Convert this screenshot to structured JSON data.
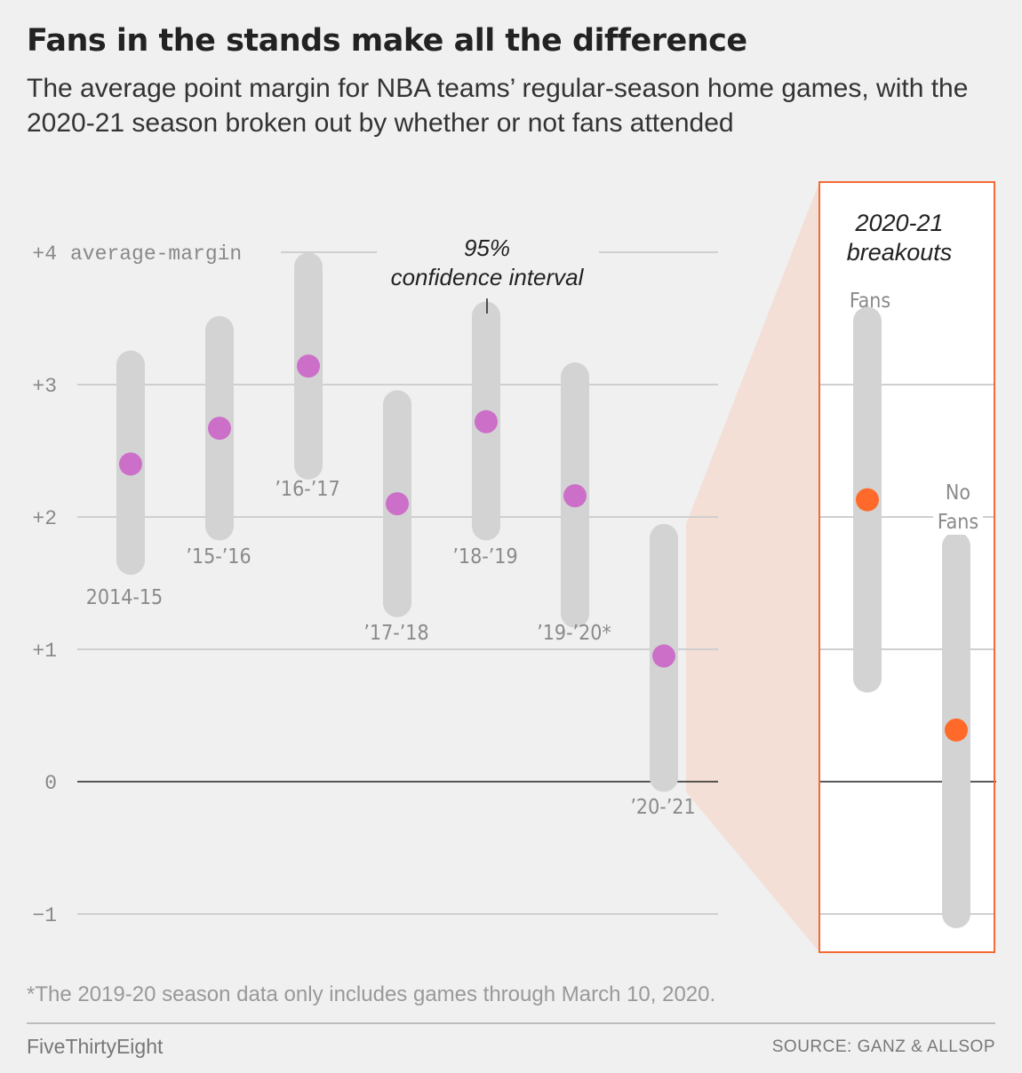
{
  "header": {
    "title": "Fans in the stands make all the difference",
    "subtitle": "The average point margin for NBA teams’ regular-season home games, with the 2020-21 season broken out by whether or not fans attended"
  },
  "footer": {
    "footnote": "*The 2019-20 season data only includes games through March 10, 2020.",
    "brand": "FiveThirtyEight",
    "source": "SOURCE: GANZ & ALLSOP"
  },
  "colors": {
    "background": "#f0f0f0",
    "interval": "#d3d3d3",
    "season_dot": "#cc6fc9",
    "breakout_dot": "#ff6a2a",
    "breakout_border": "#f36a35",
    "zoom_fill": "#f3dfd6"
  },
  "chart_data": [
    {
      "type": "scatter",
      "subtype": "point-with-interval",
      "ylabel": "average-margin",
      "ylim": [
        -1,
        4
      ],
      "yticks": [
        -1,
        0,
        1,
        2,
        3,
        4
      ],
      "ytick_labels": [
        "−1",
        "0",
        "+1",
        "+2",
        "+3",
        "+4"
      ],
      "grid": true,
      "annotation": [
        "95%",
        "confidence interval"
      ],
      "categories": [
        "2014-15",
        "’15-’16",
        "’16-’17",
        "’17-’18",
        "’18-’19",
        "’19-’20*",
        "’20-’21"
      ],
      "values": [
        2.4,
        2.67,
        3.14,
        2.1,
        2.72,
        2.16,
        0.95
      ],
      "intervals": [
        [
          1.67,
          3.15
        ],
        [
          1.93,
          3.41
        ],
        [
          2.39,
          3.89
        ],
        [
          1.35,
          2.85
        ],
        [
          1.93,
          3.52
        ],
        [
          1.27,
          3.06
        ],
        [
          0.03,
          1.84
        ]
      ]
    },
    {
      "type": "scatter",
      "subtype": "point-with-interval",
      "title": [
        "2020-21",
        "breakouts"
      ],
      "categories": [
        [
          "Fans"
        ],
        [
          "No",
          "Fans"
        ]
      ],
      "values": [
        2.13,
        0.39
      ],
      "intervals": [
        [
          0.78,
          3.48
        ],
        [
          -1.0,
          1.78
        ]
      ]
    }
  ]
}
